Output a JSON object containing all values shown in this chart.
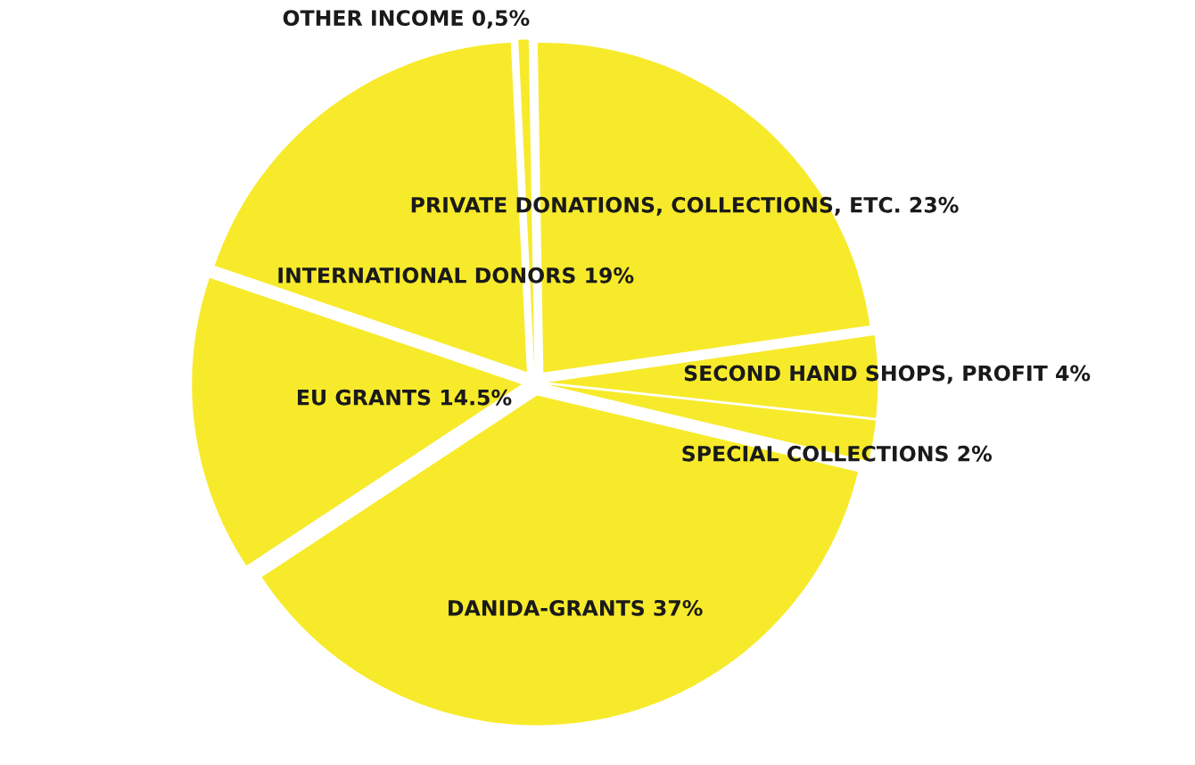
{
  "chart_data": {
    "type": "pie",
    "categories": [
      "PRIVATE DONATIONS, COLLECTIONS, ETC.",
      "SECOND HAND SHOPS, PROFIT",
      "SPECIAL COLLECTIONS",
      "DANIDA-GRANTS",
      "EU GRANTS",
      "INTERNATIONAL DONORS",
      "OTHER INCOME"
    ],
    "values": [
      23,
      4,
      2,
      37,
      14.5,
      19,
      0.5
    ],
    "value_labels": [
      "23%",
      "4%",
      "2%",
      "37%",
      "14.5%",
      "19%",
      "0,5%"
    ],
    "colors": [
      "#f7ea2b",
      "#f7ea2b",
      "#f7ea2b",
      "#f7ea2b",
      "#f7ea2b",
      "#f7ea2b",
      "#f7ea2b"
    ],
    "legend": false
  }
}
